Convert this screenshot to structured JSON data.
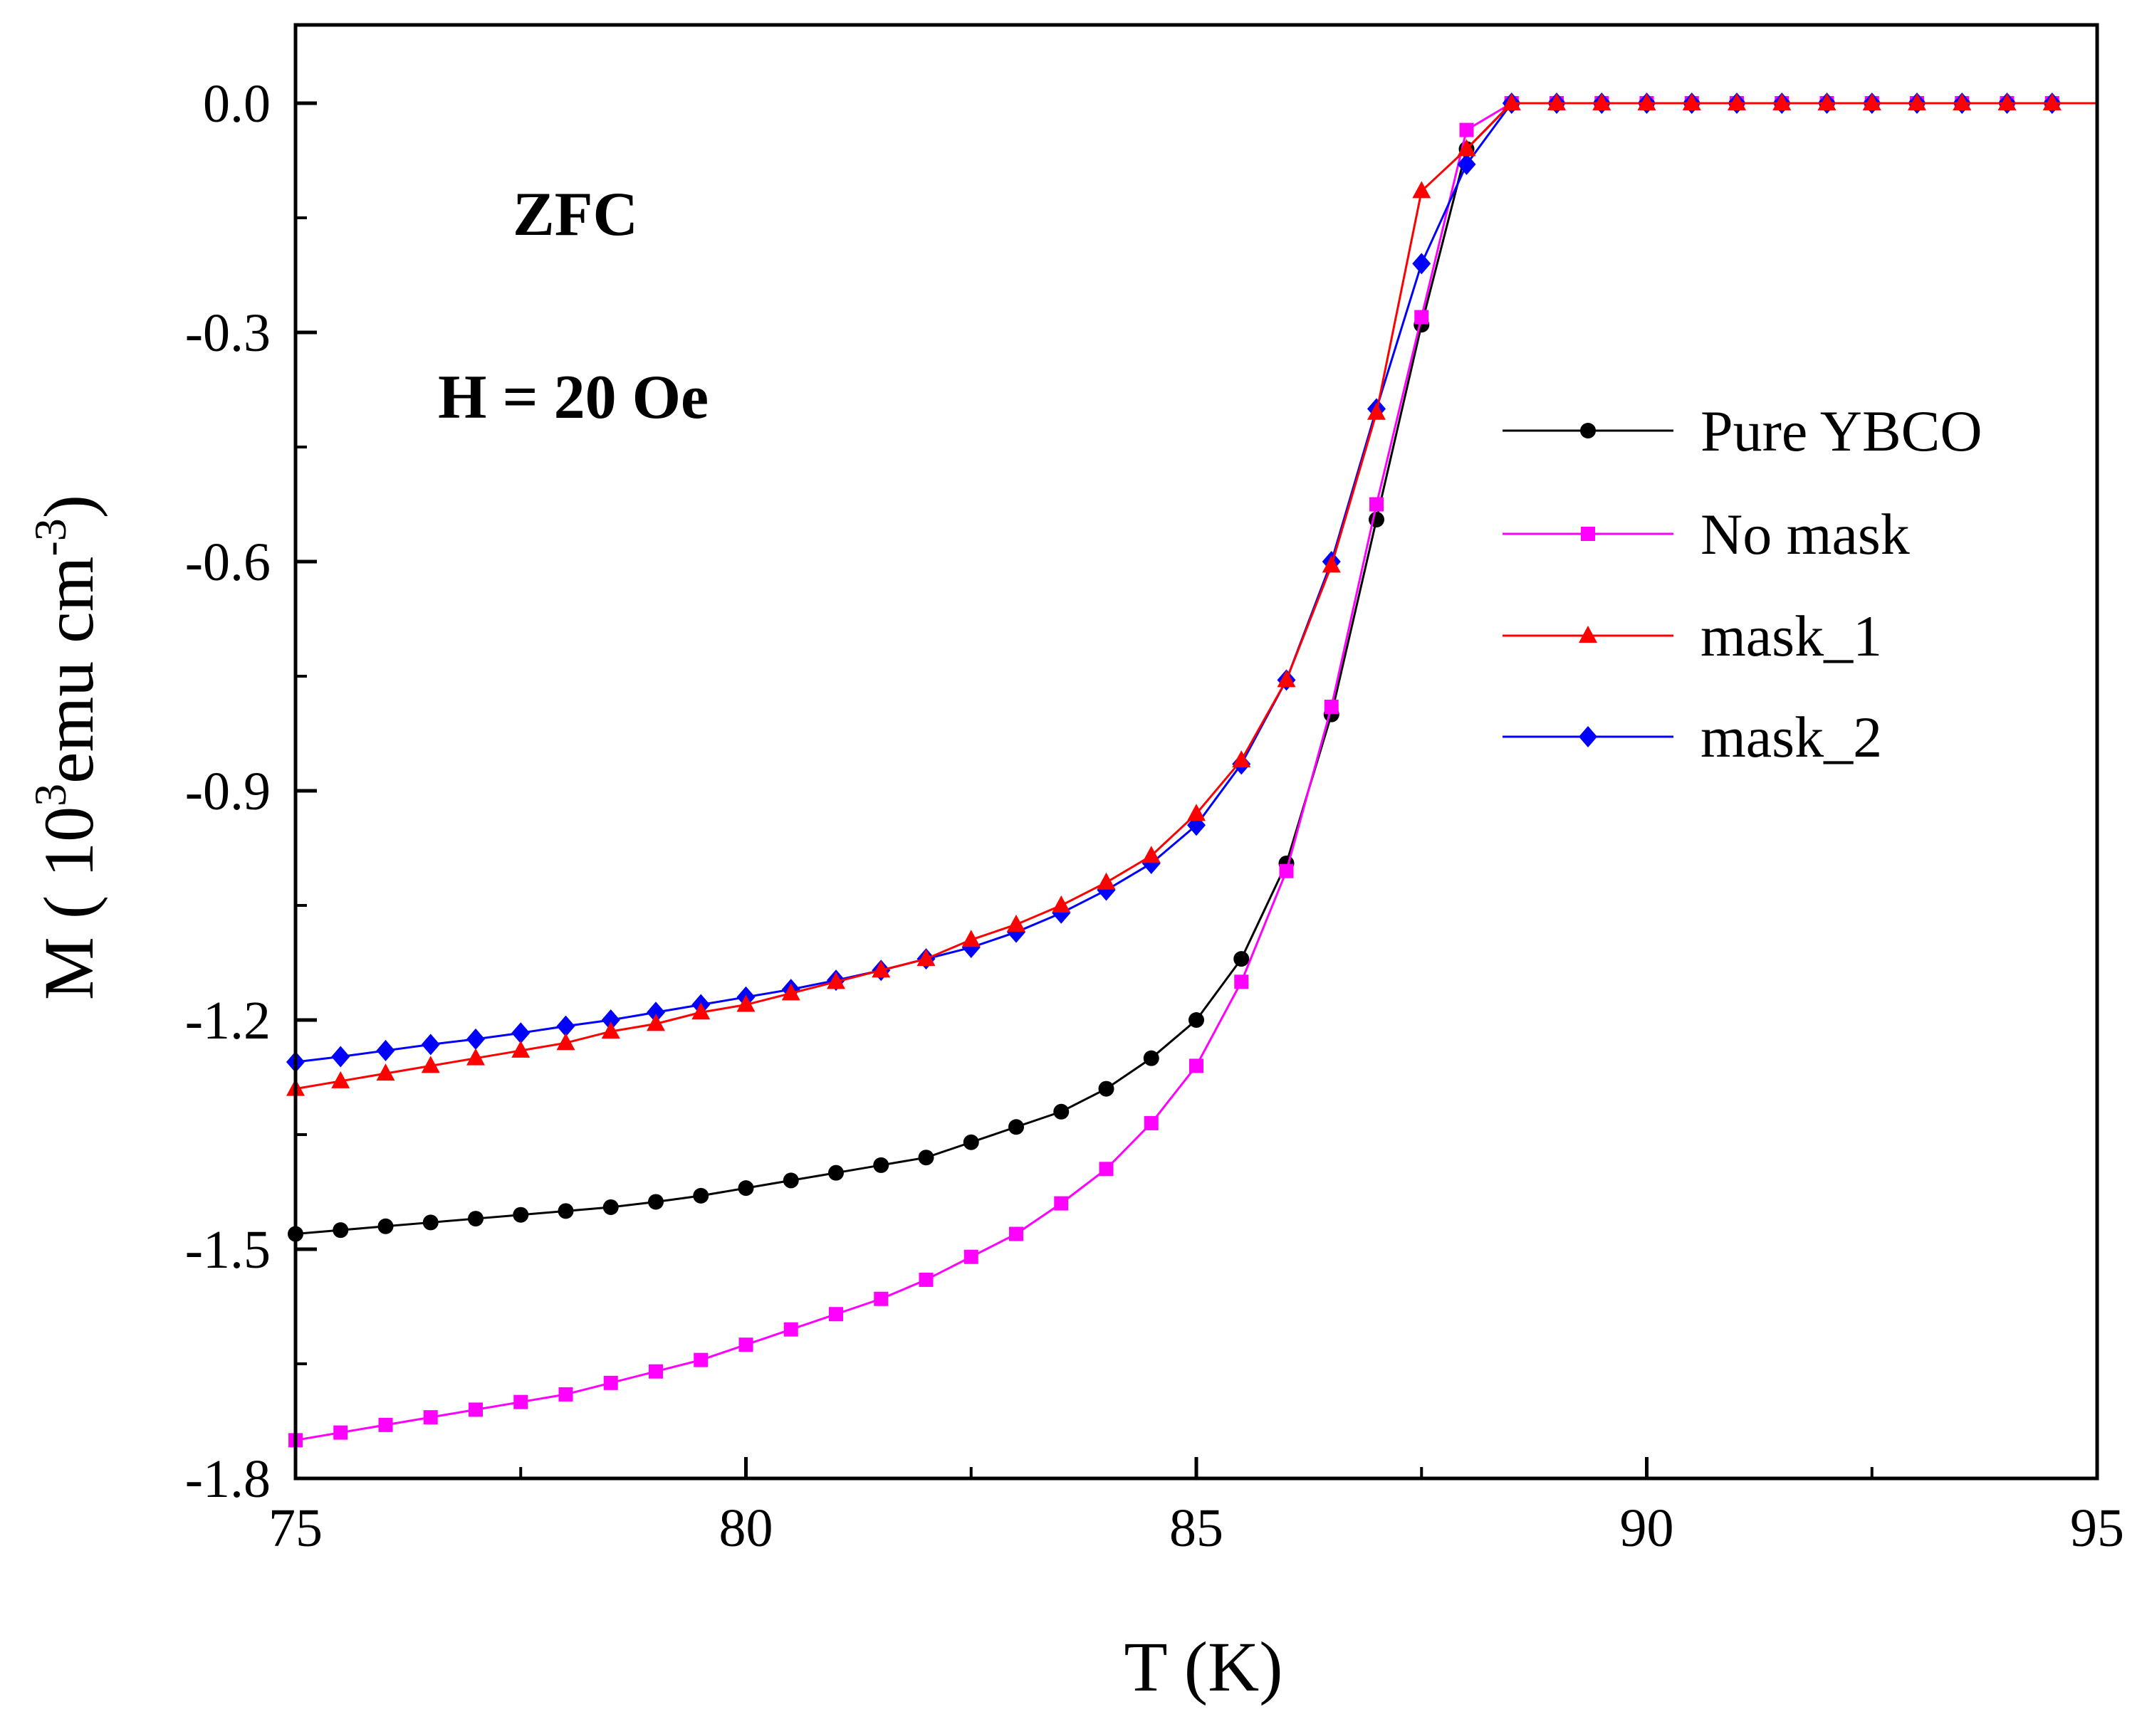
{
  "chart_data": {
    "type": "line",
    "xlabel": "T (K)",
    "ylabel": {
      "prefix": "M ( 10",
      "sup1": "3",
      "mid": "emu cm",
      "sup2": "-3",
      "suffix": ")"
    },
    "xlim": [
      75,
      95
    ],
    "ylim": [
      -1.8,
      0.1
    ],
    "xticks": [
      75,
      80,
      85,
      90,
      95
    ],
    "xtick_labels": [
      "75",
      "80",
      "85",
      "90",
      "95"
    ],
    "yticks": [
      0.0,
      -0.3,
      -0.6,
      -0.9,
      -1.2,
      -1.5,
      -1.8
    ],
    "ytick_labels": [
      "0.0",
      "-0.3",
      "-0.6",
      "-0.9",
      "-1.2",
      "-1.5",
      "-1.8"
    ],
    "grid": false,
    "legend_position": "right",
    "annotations": [
      "ZFC",
      "H = 20 Oe"
    ],
    "x": [
      75.0,
      75.5,
      76.0,
      76.5,
      77.0,
      77.5,
      78.0,
      78.5,
      79.0,
      79.5,
      80.0,
      80.5,
      81.0,
      81.5,
      82.0,
      82.5,
      83.0,
      83.5,
      84.0,
      84.5,
      85.0,
      85.5,
      86.0,
      86.5,
      87.0,
      87.5,
      88.0,
      88.5,
      89.0,
      89.5,
      90.0,
      90.5,
      91.0,
      91.5,
      92.0,
      92.5,
      93.0,
      93.5,
      94.0,
      94.5
    ],
    "series": [
      {
        "name": "Pure YBCO",
        "color": "#000000",
        "marker": "circle",
        "values": [
          -1.48,
          -1.475,
          -1.47,
          -1.465,
          -1.46,
          -1.455,
          -1.45,
          -1.445,
          -1.438,
          -1.43,
          -1.42,
          -1.41,
          -1.4,
          -1.39,
          -1.38,
          -1.36,
          -1.34,
          -1.32,
          -1.29,
          -1.25,
          -1.2,
          -1.12,
          -0.995,
          -0.8,
          -0.545,
          -0.29,
          -0.06,
          0.0,
          0.0,
          0.0,
          0.0,
          0.0,
          0.0,
          0.0,
          0.0,
          0.0,
          0.0,
          0.0,
          0.0,
          0.0
        ]
      },
      {
        "name": "No mask",
        "color": "#ff00ff",
        "marker": "square",
        "values": [
          -1.75,
          -1.74,
          -1.73,
          -1.72,
          -1.71,
          -1.7,
          -1.69,
          -1.675,
          -1.66,
          -1.645,
          -1.625,
          -1.605,
          -1.585,
          -1.565,
          -1.54,
          -1.51,
          -1.48,
          -1.44,
          -1.395,
          -1.335,
          -1.26,
          -1.15,
          -1.005,
          -0.79,
          -0.525,
          -0.28,
          -0.035,
          0.0,
          0.0,
          0.0,
          0.0,
          0.0,
          0.0,
          0.0,
          0.0,
          0.0,
          0.0,
          0.0,
          0.0,
          0.0
        ]
      },
      {
        "name": "mask_1",
        "color": "#ff0000",
        "marker": "triangle",
        "values": [
          -1.29,
          -1.28,
          -1.27,
          -1.26,
          -1.25,
          -1.24,
          -1.23,
          -1.215,
          -1.205,
          -1.19,
          -1.18,
          -1.165,
          -1.15,
          -1.135,
          -1.12,
          -1.095,
          -1.075,
          -1.05,
          -1.02,
          -0.985,
          -0.93,
          -0.86,
          -0.755,
          -0.605,
          -0.405,
          -0.115,
          -0.06,
          0.0,
          0.0,
          0.0,
          0.0,
          0.0,
          0.0,
          0.0,
          0.0,
          0.0,
          0.0,
          0.0,
          0.0,
          0.0
        ]
      },
      {
        "name": "mask_2",
        "color": "#0000ff",
        "marker": "diamond",
        "values": [
          -1.255,
          -1.248,
          -1.24,
          -1.232,
          -1.225,
          -1.217,
          -1.208,
          -1.2,
          -1.19,
          -1.18,
          -1.17,
          -1.16,
          -1.148,
          -1.135,
          -1.12,
          -1.105,
          -1.085,
          -1.06,
          -1.03,
          -0.995,
          -0.945,
          -0.865,
          -0.755,
          -0.6,
          -0.4,
          -0.21,
          -0.08,
          0.0,
          0.0,
          0.0,
          0.0,
          0.0,
          0.0,
          0.0,
          0.0,
          0.0,
          0.0,
          0.0,
          0.0,
          0.0
        ]
      }
    ]
  }
}
